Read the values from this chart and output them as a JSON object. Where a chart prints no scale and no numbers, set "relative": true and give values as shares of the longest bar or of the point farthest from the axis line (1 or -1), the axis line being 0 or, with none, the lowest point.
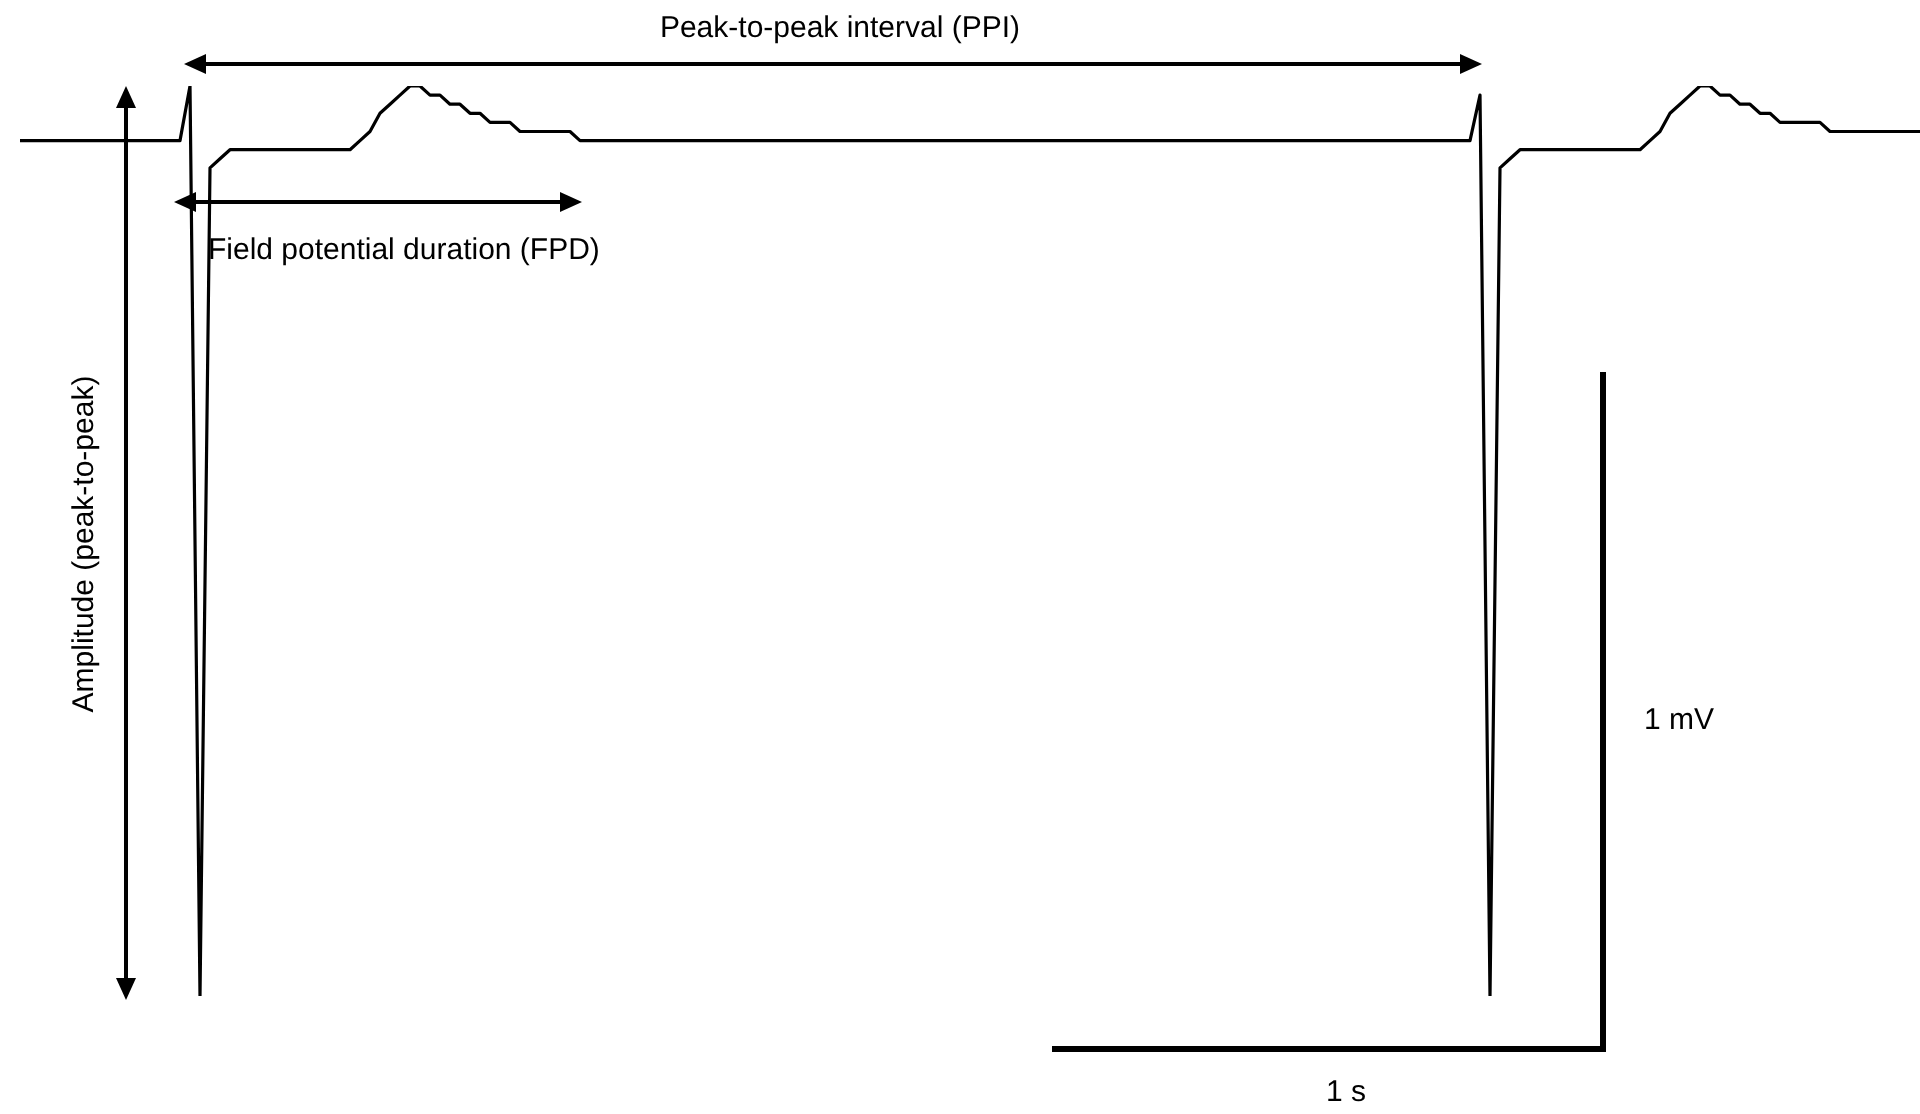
{
  "chart_data": {
    "type": "line",
    "relative": true,
    "line_style": "solid",
    "categories": [
      null,
      null,
      null,
      null,
      null,
      null,
      null,
      null,
      null,
      null,
      null,
      null,
      null,
      null,
      null,
      null,
      null,
      null,
      null,
      null,
      null,
      null,
      null,
      null,
      null,
      null,
      null,
      null,
      null,
      null,
      null,
      null,
      null,
      null,
      null,
      null,
      null,
      null,
      null,
      null,
      null,
      null,
      null,
      null,
      null,
      null,
      null,
      null,
      null,
      null,
      null,
      null,
      null,
      null,
      null,
      null,
      null,
      null,
      null,
      null,
      null,
      null,
      null,
      null,
      null,
      null,
      null,
      null,
      null,
      null,
      null,
      null,
      null,
      null,
      null,
      null,
      null,
      null,
      null,
      null,
      null,
      null,
      null,
      null,
      null,
      null,
      null,
      null,
      null,
      null,
      null,
      null,
      null,
      null,
      null,
      null,
      null,
      null,
      null,
      null,
      null,
      null,
      null,
      null,
      null,
      null,
      null,
      null,
      null,
      null,
      null,
      null,
      null,
      null,
      null,
      null,
      null,
      null,
      null,
      null,
      null,
      null,
      null,
      null,
      null,
      null,
      null,
      null,
      null,
      null,
      null,
      null,
      null,
      null,
      null,
      null,
      null,
      null,
      null,
      null,
      null,
      null,
      null,
      null,
      null,
      null,
      null,
      null,
      null,
      null,
      null,
      null,
      null,
      null,
      null,
      null,
      null,
      null,
      null,
      null,
      null,
      null,
      null,
      null,
      null,
      null,
      null,
      null,
      null,
      null,
      null,
      null,
      null,
      null,
      null,
      null,
      null,
      null,
      null,
      null,
      null,
      null,
      null,
      null,
      null,
      null,
      null,
      null,
      null,
      null,
      null
    ],
    "series": [
      {
        "color": "#000000",
        "values": [
          0.94,
          0.94,
          0.94,
          0.94,
          0.94,
          0.94,
          0.94,
          0.94,
          0.94,
          0.94,
          0.94,
          0.94,
          0.94,
          0.94,
          0.94,
          0.94,
          0.94,
          1.0,
          0,
          0.91,
          0.92,
          0.93,
          0.93,
          0.93,
          0.93,
          0.93,
          0.93,
          0.93,
          0.93,
          0.93,
          0.93,
          0.93,
          0.93,
          0.93,
          0.94,
          0.95,
          0.97,
          0.98,
          0.99,
          1.0,
          1.0,
          0.99,
          0.99,
          0.98,
          0.98,
          0.97,
          0.97,
          0.96,
          0.96,
          0.96,
          0.95,
          0.95,
          0.95,
          0.95,
          0.95,
          0.95,
          0.94,
          0.94,
          0.94,
          0.94,
          0.94,
          0.94,
          0.94,
          0.94,
          0.94,
          0.94,
          0.94,
          0.94,
          0.94,
          0.94,
          0.94,
          0.94,
          0.94,
          0.94,
          0.94,
          0.94,
          0.94,
          0.94,
          0.94,
          0.94,
          0.94,
          0.94,
          0.94,
          0.94,
          0.94,
          0.94,
          0.94,
          0.94,
          0.94,
          0.94,
          0.94,
          0.94,
          0.94,
          0.94,
          0.94,
          0.94,
          0.94,
          0.94,
          0.94,
          0.94,
          0.94,
          0.94,
          0.94,
          0.94,
          0.94,
          0.94,
          0.94,
          0.94,
          0.94,
          0.94,
          0.94,
          0.94,
          0.94,
          0.94,
          0.94,
          0.94,
          0.94,
          0.94,
          0.94,
          0.94,
          0.94,
          0.94,
          0.94,
          0.94,
          0.94,
          0.94,
          0.94,
          0.94,
          0.94,
          0.94,
          0.94,
          0.94,
          0.94,
          0.94,
          0.94,
          0.94,
          0.94,
          0.94,
          0.94,
          0.94,
          0.94,
          0.94,
          0.94,
          0.94,
          0.94,
          0.94,
          0.99,
          0,
          0.91,
          0.92,
          0.93,
          0.93,
          0.93,
          0.93,
          0.93,
          0.93,
          0.93,
          0.93,
          0.93,
          0.93,
          0.93,
          0.93,
          0.93,
          0.94,
          0.95,
          0.97,
          0.98,
          0.99,
          1.0,
          1.0,
          0.99,
          0.99,
          0.98,
          0.98,
          0.97,
          0.97,
          0.96,
          0.96,
          0.96,
          0.96,
          0.96,
          0.95,
          0.95,
          0.95,
          0.95,
          0.95,
          0.95,
          0.95,
          0.95,
          0.95,
          0.95
        ]
      }
    ],
    "annotations": [
      "Peak-to-peak interval (PPI)",
      "Field potential duration (FPD)",
      "Amplitude (peak-to-peak)",
      "1 mV",
      "1 s"
    ]
  }
}
